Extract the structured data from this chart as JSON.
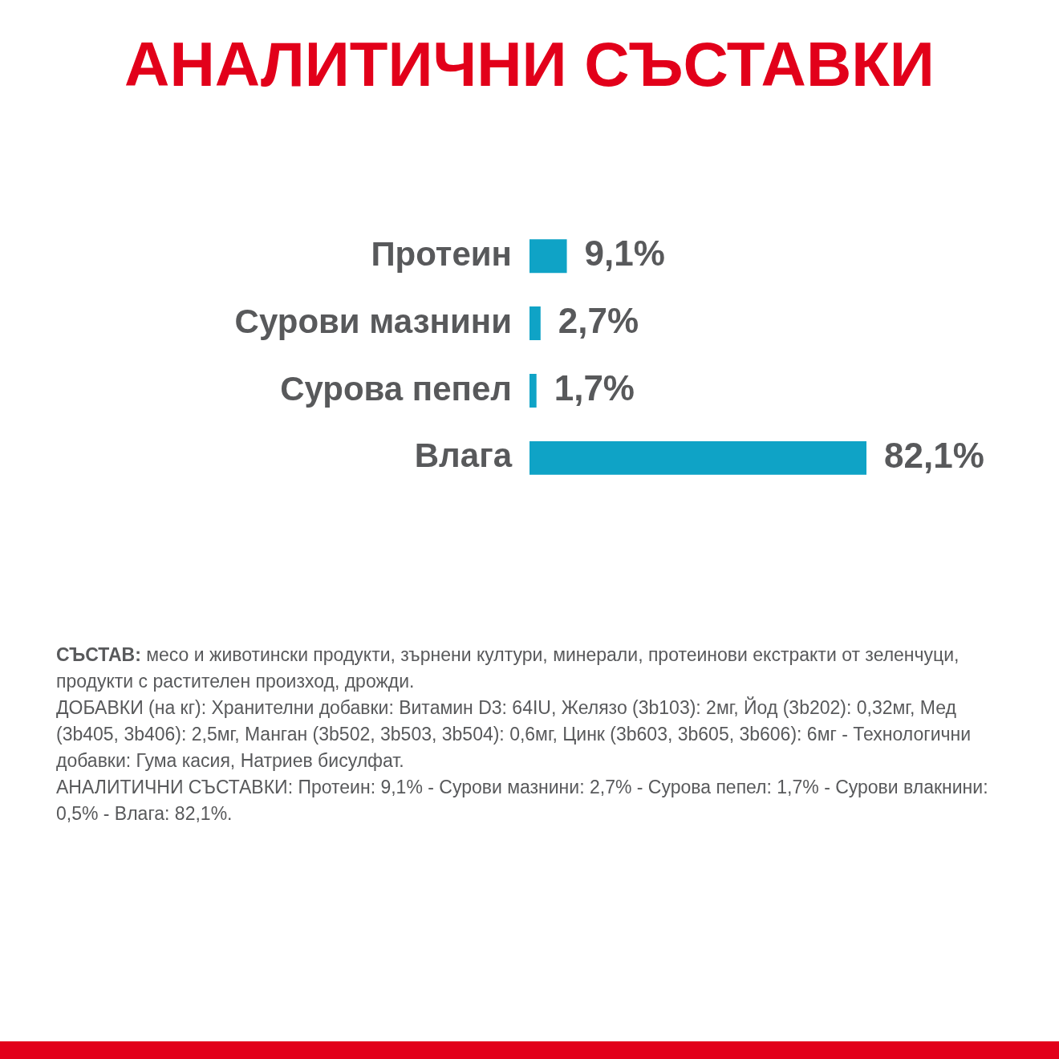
{
  "chart_data": {
    "type": "bar",
    "orientation": "horizontal",
    "title": "АНАЛИТИЧНИ СЪСТАВКИ",
    "categories": [
      "Протеин",
      "Сурови мазнини",
      "Сурова пепел",
      "Влага"
    ],
    "values": [
      9.1,
      2.7,
      1.7,
      82.1
    ],
    "value_labels": [
      "9,1%",
      "2,7%",
      "1,7%",
      "82,1%"
    ],
    "color": "#0fa3c6",
    "grid": false,
    "legend": false,
    "annotations": [
      "СЪСТАВ: месо и животински продукти, зърнени култури, минерали, протеинови екстракти от зеленчуци, продукти с растителен произход, дрожди.",
      "ДОБАВКИ (на кг): Хранителни добавки: Витамин D3: 64IU, Желязо (3b103): 2мг, Йод (3b202): 0,32мг, Мед (3b405, 3b406): 2,5мг, Манган (3b502, 3b503, 3b504): 0,6мг, Цинк (3b603, 3b605, 3b606): 6мг - Технологични добавки: Гума касия, Натриев бисулфат.",
      "АНАЛИТИЧНИ СЪСТАВКИ: Протеин: 9,1% - Сурови мазнини: 2,7% - Сурова пепел: 1,7% - Сурови влакнини: 0,5% - Влага: 82,1%."
    ]
  }
}
